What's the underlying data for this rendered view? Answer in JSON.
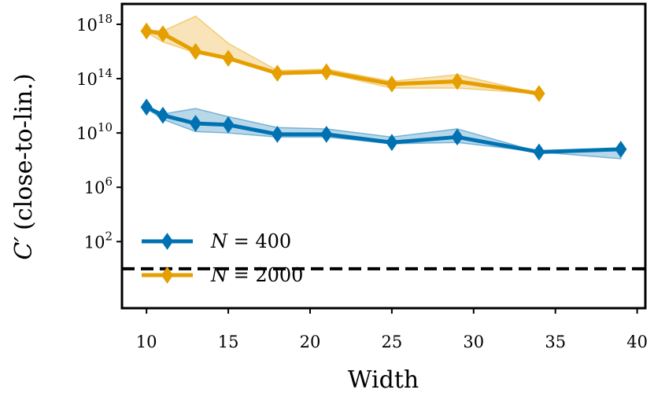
{
  "chart_data": {
    "type": "line",
    "title": "",
    "xlabel": "Width",
    "ylabel_main": "C′",
    "ylabel_rest": "(close-to-lin.)",
    "xlim": [
      8.5,
      40.5
    ],
    "ylim_log10": [
      -2.9,
      19.5
    ],
    "yscale": "log",
    "x_ticks": [
      10,
      15,
      20,
      25,
      30,
      35,
      40
    ],
    "y_ticks": [
      {
        "base": "10",
        "exp": "2",
        "log10": 2
      },
      {
        "base": "10",
        "exp": "6",
        "log10": 6
      },
      {
        "base": "10",
        "exp": "10",
        "log10": 10
      },
      {
        "base": "10",
        "exp": "14",
        "log10": 14
      },
      {
        "base": "10",
        "exp": "18",
        "log10": 18
      }
    ],
    "reference_line": {
      "log10": 0,
      "style": "dashed",
      "color": "#000000"
    },
    "legend_position": "lower-left",
    "series": [
      {
        "name": "N = 400",
        "legend_italic": "N",
        "legend_rest": " = 400",
        "color": "#0072B2",
        "x": [
          10,
          11,
          13,
          15,
          18,
          21,
          25,
          29,
          34,
          39
        ],
        "log10_y": [
          11.9,
          11.3,
          10.7,
          10.6,
          9.9,
          9.9,
          9.3,
          9.7,
          8.6,
          8.8
        ],
        "band_low": [
          11.8,
          11.0,
          10.1,
          10.0,
          9.7,
          9.7,
          9.2,
          9.3,
          8.6,
          8.1
        ],
        "band_high": [
          12.0,
          11.4,
          11.8,
          11.2,
          10.4,
          10.3,
          9.7,
          10.3,
          8.6,
          8.8
        ]
      },
      {
        "name": "N = 2000",
        "legend_italic": "N",
        "legend_rest": " = 2000",
        "color": "#E69F00",
        "x": [
          10,
          11,
          13,
          15,
          18,
          21,
          25,
          29,
          34
        ],
        "log10_y": [
          17.5,
          17.3,
          16.0,
          15.5,
          14.4,
          14.5,
          13.6,
          13.8,
          12.9
        ],
        "band_low": [
          17.4,
          16.7,
          15.9,
          15.4,
          14.3,
          14.4,
          13.3,
          13.3,
          12.9
        ],
        "band_high": [
          17.6,
          17.5,
          18.6,
          16.6,
          14.6,
          14.7,
          13.8,
          14.3,
          12.9
        ]
      }
    ]
  }
}
